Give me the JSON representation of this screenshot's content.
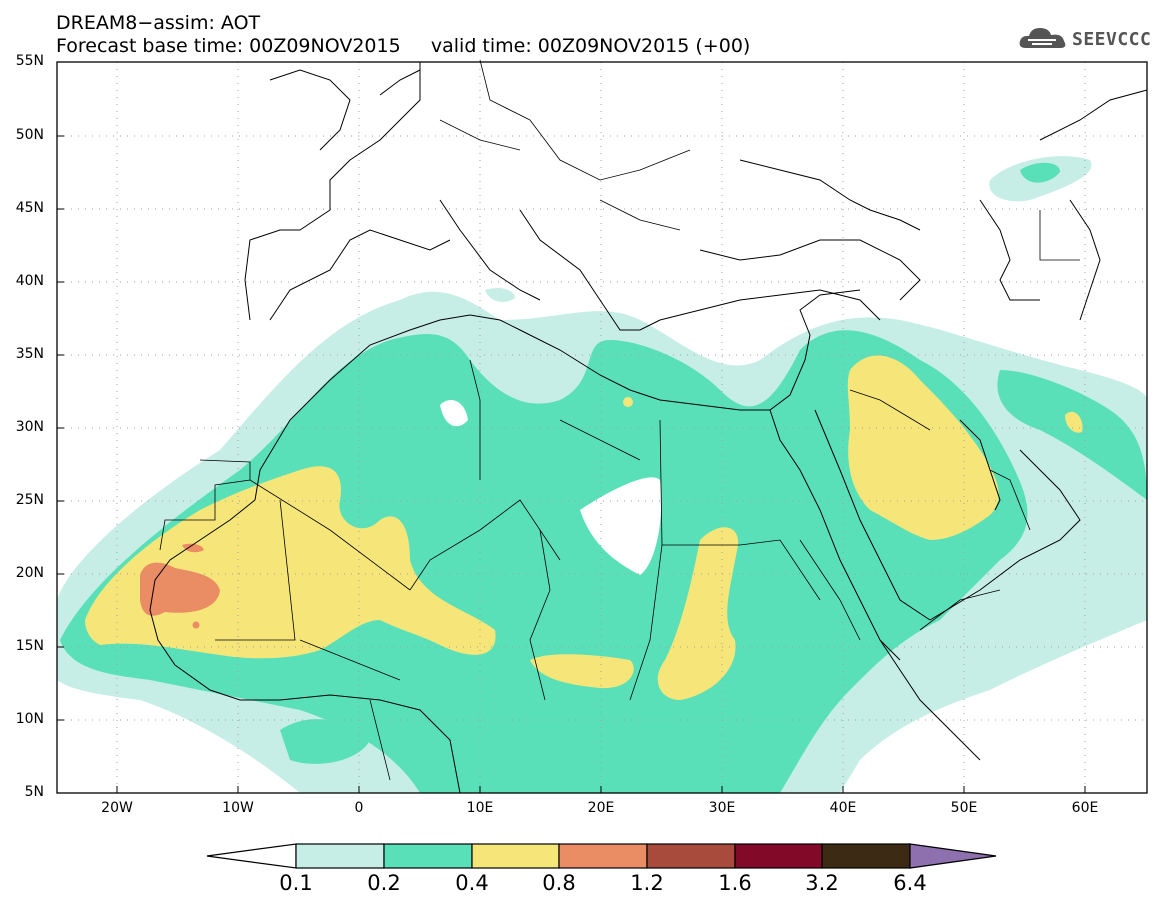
{
  "header": {
    "line1": "DREAM8−assim: AOT",
    "line2": "Forecast base time: 00Z09NOV2015     valid time: 00Z09NOV2015 (+00)"
  },
  "logo": {
    "icon": "cloud-icon",
    "text": "SEEVCCC"
  },
  "map": {
    "lon_range": [
      -25,
      65
    ],
    "lat_range": [
      5,
      55
    ],
    "lat_labels": [
      "55N",
      "50N",
      "45N",
      "40N",
      "35N",
      "30N",
      "25N",
      "20N",
      "15N",
      "10N",
      "5N"
    ],
    "lon_labels": [
      "20W",
      "10W",
      "0",
      "10E",
      "20E",
      "30E",
      "40E",
      "50E",
      "60E"
    ]
  },
  "colorbar": {
    "labels": [
      "0.1",
      "0.2",
      "0.4",
      "0.8",
      "1.2",
      "1.6",
      "3.2",
      "6.4"
    ],
    "colors": [
      "#ffffff",
      "#c6eee6",
      "#5ae0b8",
      "#f6e67a",
      "#ea8c64",
      "#a84a3c",
      "#820a28",
      "#3c2a14",
      "#8f70ae"
    ]
  },
  "fill_colors": {
    "level_0.1": "#c6eee6",
    "level_0.2": "#5ae0b8",
    "level_0.4": "#f6e67a",
    "level_0.8": "#ea8c64"
  }
}
